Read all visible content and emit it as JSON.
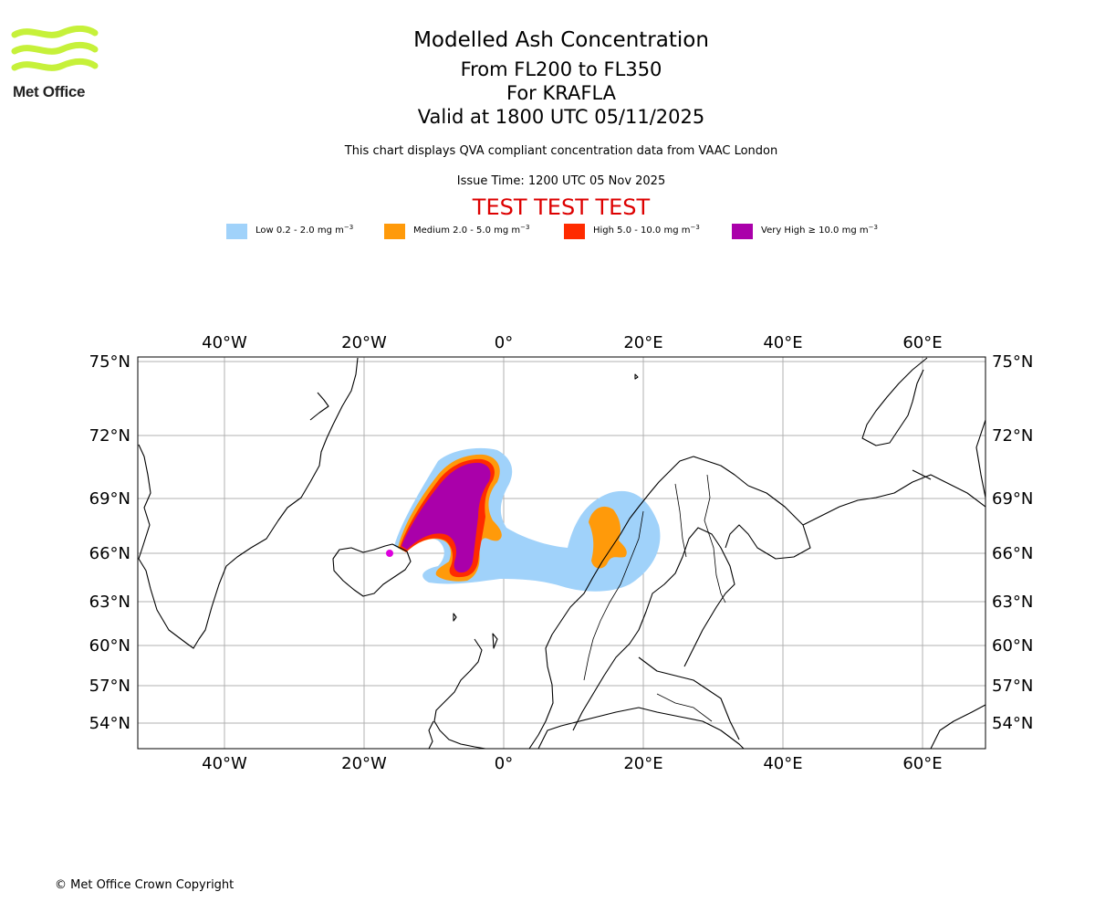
{
  "header": {
    "logo_name": "Met Office",
    "title": "Modelled Ash Concentration",
    "subtitle_levels": "From FL200 to FL350",
    "subtitle_volcano": "For KRAFLA",
    "valid_time": "Valid at 1800 UTC 05/11/2025",
    "description": "This chart displays QVA compliant concentration data from VAAC London",
    "issue_time": "Issue Time: 1200 UTC 05 Nov 2025",
    "test_banner": "TEST TEST TEST"
  },
  "legend": [
    {
      "label": "Low 0.2 - 2.0 mg m",
      "color": "#a0d2fa"
    },
    {
      "label": "Medium 2.0 - 5.0 mg m",
      "color": "#ff9a0a"
    },
    {
      "label": "High 5.0 - 10.0 mg m",
      "color": "#ff2b00"
    },
    {
      "label": "Very High ≥ 10.0 mg m",
      "color": "#aa00aa"
    }
  ],
  "legend_unit_exp": "−3",
  "map": {
    "lon_ticks": [
      "40°W",
      "20°W",
      "0°",
      "20°E",
      "40°E",
      "60°E"
    ],
    "lat_ticks": [
      "75°N",
      "72°N",
      "69°N",
      "66°N",
      "63°N",
      "60°N",
      "57°N",
      "54°N"
    ],
    "colors": {
      "grid": "#b0b0b0",
      "coast": "#000000",
      "low": "#a0d2fa",
      "medium": "#ff9a0a",
      "high": "#ff2b00",
      "very_high": "#aa00aa",
      "volcano": "#dd00dd"
    }
  },
  "footer": {
    "copyright": "© Met Office Crown Copyright"
  }
}
